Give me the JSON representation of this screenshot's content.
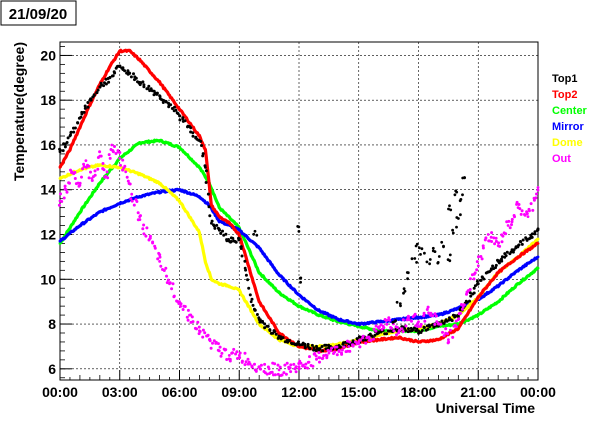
{
  "date_label": "21/09/20",
  "chart_data": {
    "type": "scatter",
    "title": "",
    "xlabel": "Universal Time",
    "ylabel": "Temperature(degree)",
    "xlim": [
      0,
      24
    ],
    "ylim": [
      5.5,
      20.6
    ],
    "grid": true,
    "legend_position": "right",
    "x_ticks": [
      {
        "value": 0,
        "label": "00:00"
      },
      {
        "value": 3,
        "label": "03:00"
      },
      {
        "value": 6,
        "label": "06:00"
      },
      {
        "value": 9,
        "label": "09:00"
      },
      {
        "value": 12,
        "label": "12:00"
      },
      {
        "value": 15,
        "label": "15:00"
      },
      {
        "value": 18,
        "label": "18:00"
      },
      {
        "value": 21,
        "label": "21:00"
      },
      {
        "value": 24,
        "label": "00:00"
      }
    ],
    "y_ticks": [
      {
        "value": 6,
        "label": "6"
      },
      {
        "value": 8,
        "label": "8"
      },
      {
        "value": 10,
        "label": "10"
      },
      {
        "value": 12,
        "label": "12"
      },
      {
        "value": 14,
        "label": "14"
      },
      {
        "value": 16,
        "label": "16"
      },
      {
        "value": 18,
        "label": "18"
      },
      {
        "value": 20,
        "label": "20"
      }
    ],
    "series": [
      {
        "name": "Top1",
        "color": "#000000",
        "marker": "dot",
        "x": [
          0,
          0.5,
          1,
          1.5,
          2,
          2.5,
          3,
          3.5,
          4,
          5,
          6,
          7,
          7.3,
          7.6,
          8,
          8.5,
          9,
          9.3,
          9.6,
          10,
          11,
          12,
          13,
          14,
          15,
          16,
          17,
          18,
          19,
          20,
          21,
          22,
          23,
          24
        ],
        "y": [
          15.7,
          16.4,
          17.2,
          18.0,
          18.6,
          19.0,
          19.5,
          19.2,
          18.8,
          18.2,
          17.3,
          16.2,
          15.0,
          12.5,
          12.2,
          11.7,
          11.8,
          10.5,
          9.0,
          8.2,
          7.4,
          7.1,
          6.9,
          7.0,
          7.3,
          7.6,
          7.8,
          7.7,
          8.0,
          8.4,
          9.8,
          10.8,
          11.5,
          12.2
        ]
      },
      {
        "name": "Top2",
        "color": "#ff0000",
        "marker": "line",
        "x": [
          0,
          0.5,
          1,
          1.5,
          2,
          2.5,
          3,
          3.5,
          4,
          5,
          6,
          7,
          7.3,
          7.6,
          8,
          8.5,
          9,
          9.5,
          10,
          11,
          12,
          13,
          14,
          15,
          16,
          17,
          18,
          19,
          20,
          21,
          22,
          23,
          24
        ],
        "y": [
          15.0,
          15.8,
          16.8,
          17.8,
          18.7,
          19.5,
          20.2,
          20.2,
          19.8,
          18.8,
          17.6,
          16.4,
          15.8,
          13.3,
          12.8,
          12.5,
          12.0,
          10.5,
          9.0,
          7.6,
          7.0,
          6.8,
          6.9,
          7.2,
          7.3,
          7.4,
          7.2,
          7.3,
          7.8,
          9.2,
          10.3,
          11.0,
          11.6
        ]
      },
      {
        "name": "Center",
        "color": "#00ff00",
        "marker": "line",
        "x": [
          0,
          1,
          2,
          3,
          4,
          5,
          6,
          7,
          7.5,
          8,
          9,
          10,
          11,
          12,
          13,
          14,
          15,
          16,
          17,
          18,
          19,
          20,
          21,
          22,
          23,
          24
        ],
        "y": [
          11.6,
          13.0,
          14.3,
          15.4,
          16.1,
          16.2,
          15.9,
          15.0,
          14.3,
          13.2,
          12.3,
          10.3,
          9.4,
          8.8,
          8.4,
          8.1,
          7.9,
          7.7,
          7.7,
          7.7,
          7.9,
          8.0,
          8.4,
          9.0,
          9.8,
          10.5
        ]
      },
      {
        "name": "Mirror",
        "color": "#0000ff",
        "marker": "line",
        "x": [
          0,
          1,
          2,
          3,
          4,
          5,
          6,
          7,
          7.5,
          8,
          9,
          10,
          11,
          12,
          13,
          14,
          15,
          16,
          17,
          18,
          19,
          20,
          21,
          22,
          23,
          24
        ],
        "y": [
          11.7,
          12.4,
          13.0,
          13.4,
          13.7,
          13.9,
          14.0,
          13.7,
          13.3,
          12.6,
          12.2,
          11.4,
          10.2,
          9.3,
          8.6,
          8.2,
          8.0,
          8.1,
          8.2,
          8.3,
          8.4,
          8.7,
          9.1,
          9.7,
          10.4,
          11.0
        ]
      },
      {
        "name": "Dome",
        "color": "#ffff00",
        "marker": "line",
        "x": [
          0,
          1,
          2,
          3,
          4,
          5,
          6,
          7,
          7.3,
          7.6,
          8,
          8.5,
          9,
          10,
          11,
          12,
          13,
          14,
          15,
          16,
          17,
          18,
          19,
          20,
          21,
          22,
          23,
          24
        ],
        "y": [
          14.5,
          14.9,
          15.1,
          15.0,
          14.7,
          14.3,
          13.5,
          12.1,
          10.8,
          10.0,
          9.8,
          9.7,
          9.5,
          8.0,
          7.3,
          7.0,
          7.0,
          7.1,
          7.3,
          7.5,
          7.7,
          7.8,
          8.0,
          8.4,
          9.2,
          10.3,
          11.0,
          11.8
        ]
      },
      {
        "name": "Out",
        "color": "#ff00ff",
        "marker": "dot",
        "x": [
          0,
          0.3,
          0.6,
          1,
          1.3,
          1.6,
          2,
          2.3,
          2.6,
          3,
          3.3,
          3.6,
          4,
          4.5,
          5,
          5.5,
          6,
          6.5,
          7,
          7.5,
          8,
          8.5,
          9,
          9.5,
          10,
          10.5,
          11,
          11.5,
          12,
          12.5,
          13,
          13.5,
          14,
          14.5,
          15,
          15.5,
          16,
          16.5,
          17,
          17.5,
          18,
          18.5,
          19,
          19.5,
          20,
          20.5,
          21,
          21.5,
          22,
          22.5,
          23,
          23.5,
          24
        ],
        "y": [
          13.5,
          14.0,
          14.8,
          14.2,
          15.3,
          14.5,
          15.5,
          14.6,
          16.0,
          15.4,
          14.8,
          13.8,
          12.8,
          11.8,
          10.8,
          9.8,
          9.0,
          8.4,
          7.7,
          7.3,
          6.8,
          6.6,
          6.6,
          6.3,
          6.1,
          6.0,
          5.95,
          6.0,
          6.1,
          6.3,
          6.5,
          6.7,
          6.8,
          7.0,
          7.2,
          7.4,
          7.8,
          8.2,
          7.6,
          8.3,
          8.1,
          8.5,
          8.0,
          7.3,
          8.2,
          9.5,
          10.6,
          12.0,
          11.5,
          12.4,
          13.2,
          12.8,
          14.1
        ]
      }
    ],
    "annotations": [
      {
        "series": "Top1",
        "kind": "scatter-cluster",
        "x": [
          16.8,
          17.0,
          17.2,
          17.5,
          17.8,
          18.0,
          18.2,
          18.5,
          18.8,
          19.0,
          19.2,
          19.5,
          19.8,
          20.0,
          20.2,
          19.6,
          19.9,
          20.3,
          11.9,
          12.0,
          9.8
        ],
        "y": [
          8.2,
          8.8,
          9.5,
          10.2,
          10.9,
          11.4,
          11.2,
          10.8,
          11.3,
          10.9,
          11.5,
          11.0,
          12.2,
          12.8,
          13.6,
          13.2,
          13.9,
          14.4,
          12.3,
          10.0,
          12.0
        ]
      }
    ]
  }
}
